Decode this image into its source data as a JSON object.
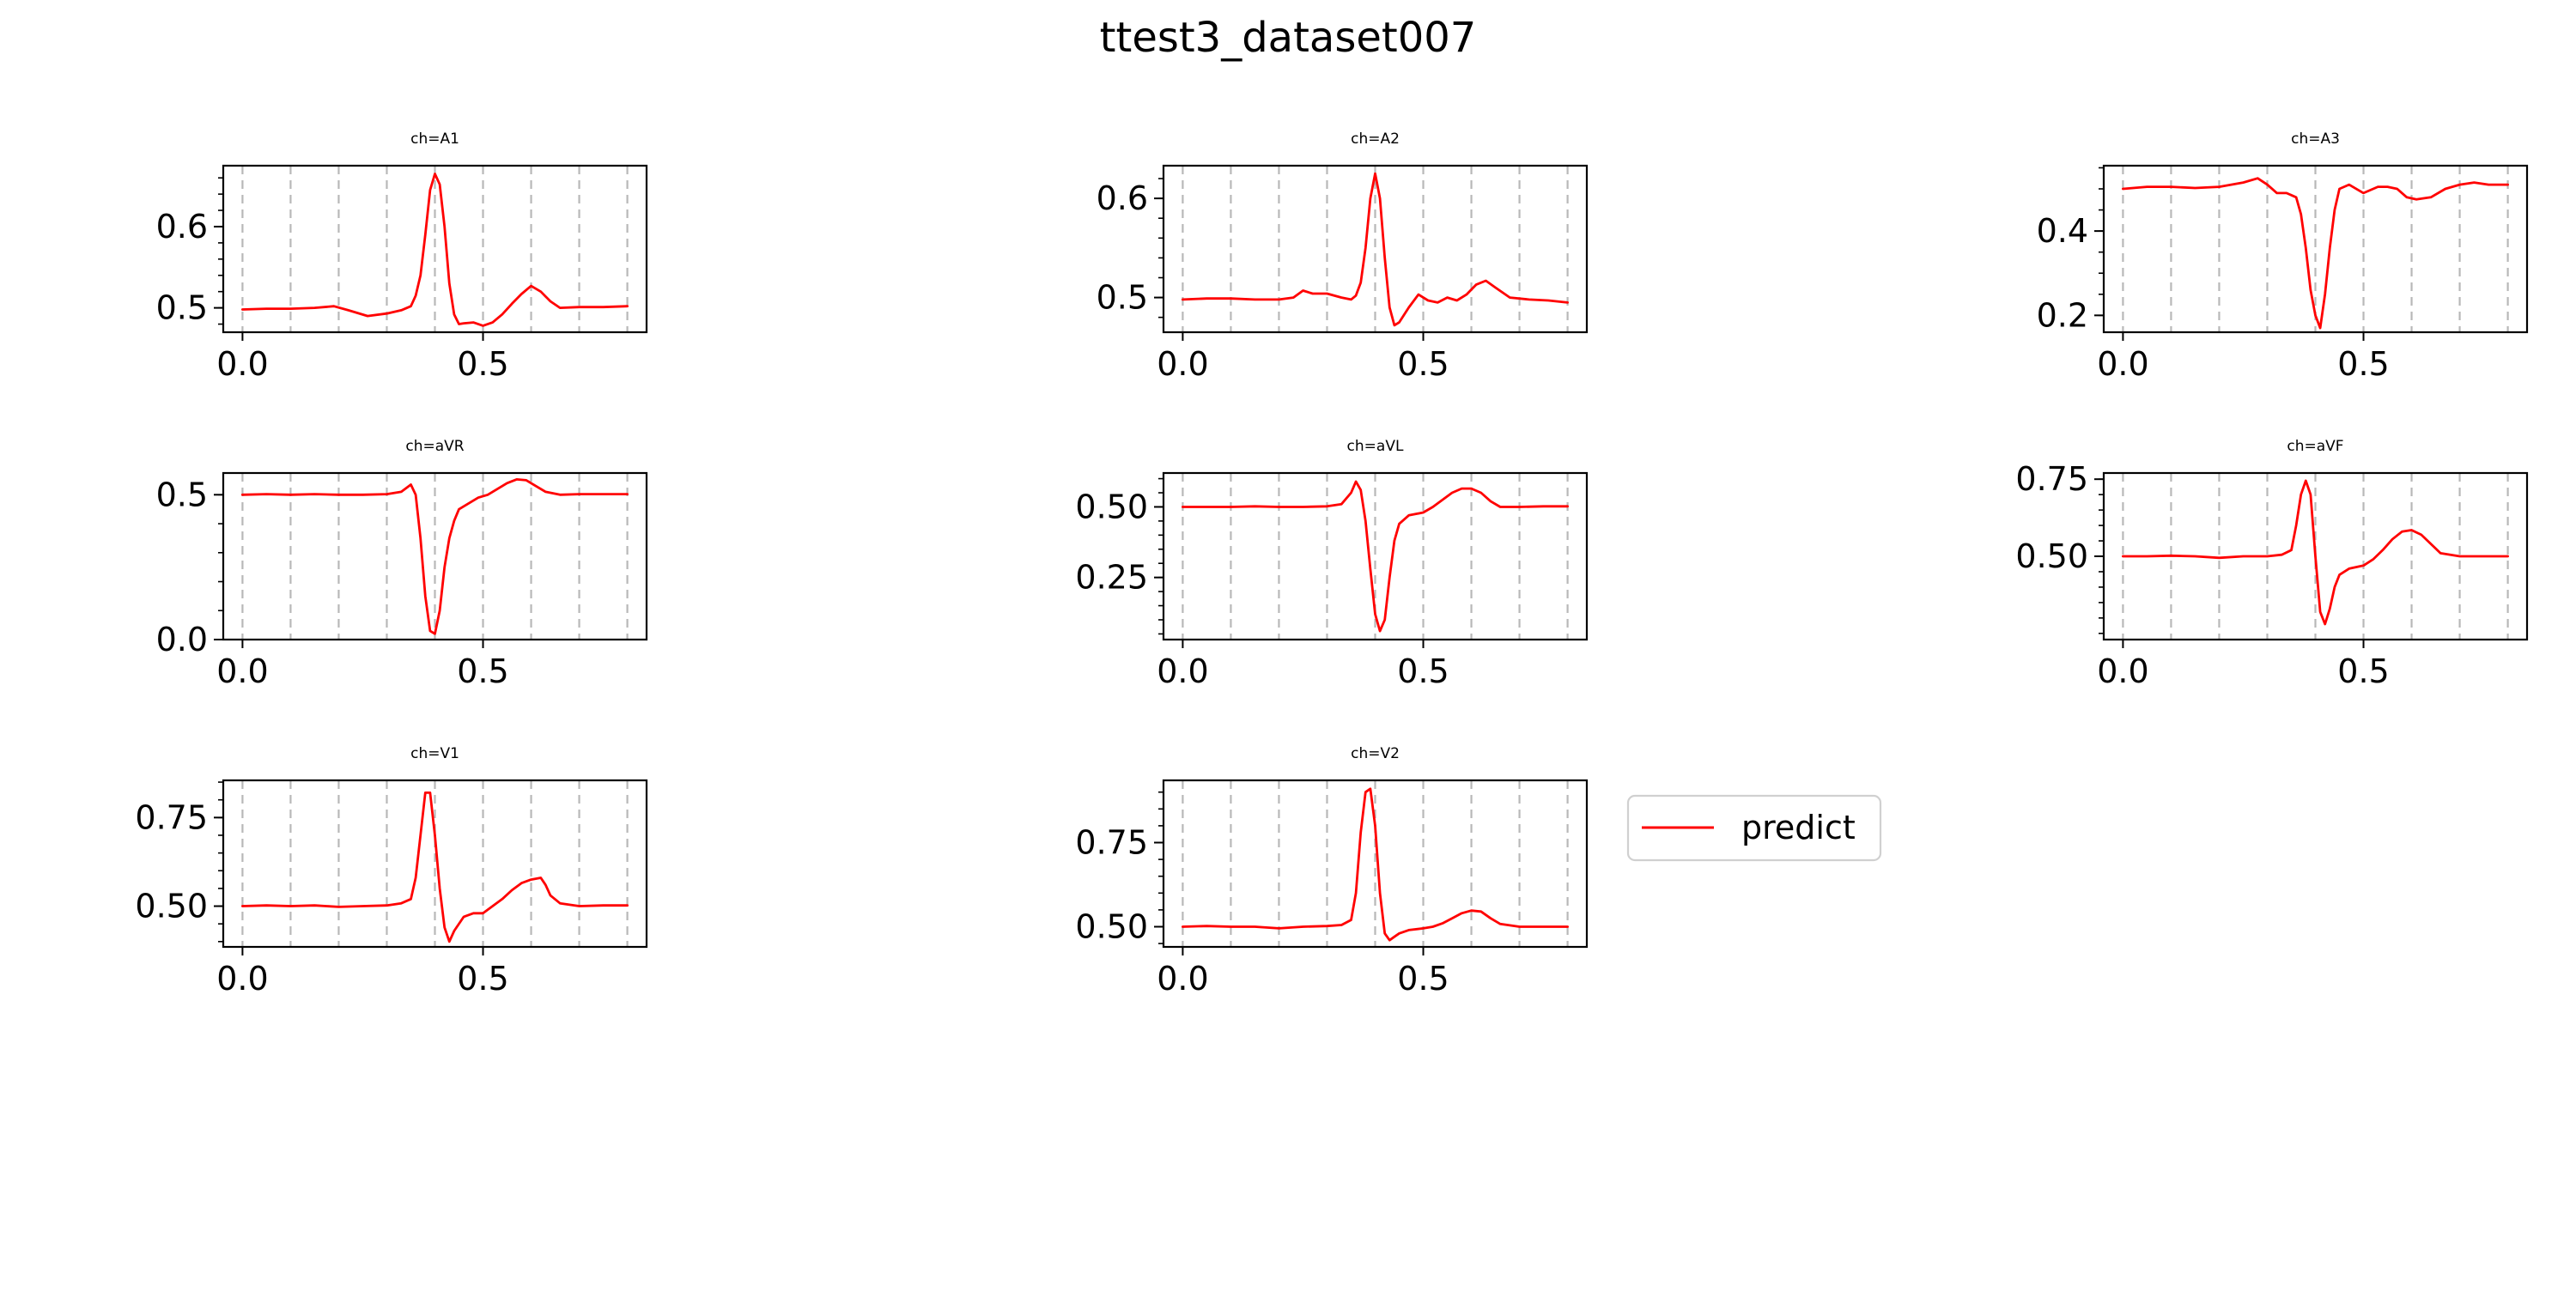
{
  "figure": {
    "title": "ttest3_dataset007",
    "legend": {
      "label": "predict",
      "color": "#ff0000",
      "placement": "right of ch=V2 panel"
    }
  },
  "chart_data": [
    {
      "type": "line",
      "title": "ch=A1",
      "xlim": [
        -0.04,
        0.84
      ],
      "ylim": [
        0.47,
        0.675
      ],
      "xticks": [
        0.0,
        0.5
      ],
      "xtick_labels": [
        "0.0",
        "0.5"
      ],
      "yticks": [
        0.5,
        0.6
      ],
      "ytick_labels": [
        "0.5",
        "0.6"
      ],
      "yminor_step": 0.02,
      "vlines": [
        0.0,
        0.1,
        0.2,
        0.3,
        0.4,
        0.5,
        0.6,
        0.7,
        0.8
      ],
      "grid": "x dashed",
      "color": "#ff0000",
      "series": [
        {
          "name": "predict",
          "x": [
            0.0,
            0.05,
            0.1,
            0.15,
            0.19,
            0.22,
            0.26,
            0.3,
            0.33,
            0.35,
            0.36,
            0.37,
            0.38,
            0.39,
            0.4,
            0.41,
            0.42,
            0.43,
            0.44,
            0.45,
            0.46,
            0.48,
            0.5,
            0.52,
            0.54,
            0.56,
            0.58,
            0.6,
            0.62,
            0.64,
            0.66,
            0.7,
            0.75,
            0.8
          ],
          "y": [
            0.498,
            0.499,
            0.499,
            0.5,
            0.502,
            0.497,
            0.49,
            0.493,
            0.497,
            0.502,
            0.515,
            0.54,
            0.59,
            0.645,
            0.665,
            0.652,
            0.6,
            0.53,
            0.492,
            0.48,
            0.481,
            0.482,
            0.478,
            0.482,
            0.492,
            0.505,
            0.517,
            0.527,
            0.52,
            0.508,
            0.5,
            0.501,
            0.501,
            0.502
          ]
        }
      ]
    },
    {
      "type": "line",
      "title": "ch=A2",
      "xlim": [
        -0.04,
        0.84
      ],
      "ylim": [
        0.465,
        0.633
      ],
      "xticks": [
        0.0,
        0.5
      ],
      "xtick_labels": [
        "0.0",
        "0.5"
      ],
      "yticks": [
        0.5,
        0.6
      ],
      "ytick_labels": [
        "0.5",
        "0.6"
      ],
      "yminor_step": 0.02,
      "vlines": [
        0.0,
        0.1,
        0.2,
        0.3,
        0.4,
        0.5,
        0.6,
        0.7,
        0.8
      ],
      "grid": "x dashed",
      "color": "#ff0000",
      "series": [
        {
          "name": "predict",
          "x": [
            0.0,
            0.05,
            0.1,
            0.15,
            0.2,
            0.23,
            0.25,
            0.27,
            0.3,
            0.33,
            0.35,
            0.36,
            0.37,
            0.38,
            0.39,
            0.4,
            0.41,
            0.42,
            0.43,
            0.44,
            0.45,
            0.47,
            0.49,
            0.51,
            0.53,
            0.55,
            0.57,
            0.59,
            0.61,
            0.63,
            0.65,
            0.68,
            0.72,
            0.76,
            0.8
          ],
          "y": [
            0.498,
            0.499,
            0.499,
            0.498,
            0.498,
            0.5,
            0.507,
            0.504,
            0.504,
            0.5,
            0.498,
            0.502,
            0.515,
            0.55,
            0.6,
            0.625,
            0.6,
            0.54,
            0.49,
            0.472,
            0.475,
            0.49,
            0.503,
            0.497,
            0.495,
            0.5,
            0.497,
            0.503,
            0.513,
            0.517,
            0.51,
            0.5,
            0.498,
            0.497,
            0.495
          ]
        }
      ]
    },
    {
      "type": "line",
      "title": "ch=A3",
      "xlim": [
        -0.04,
        0.84
      ],
      "ylim": [
        0.16,
        0.555
      ],
      "xticks": [
        0.0,
        0.5
      ],
      "xtick_labels": [
        "0.0",
        "0.5"
      ],
      "yticks": [
        0.2,
        0.4
      ],
      "ytick_labels": [
        "0.2",
        "0.4"
      ],
      "yminor_step": 0.05,
      "vlines": [
        0.0,
        0.1,
        0.2,
        0.3,
        0.4,
        0.5,
        0.6,
        0.7,
        0.8
      ],
      "grid": "x dashed",
      "color": "#ff0000",
      "series": [
        {
          "name": "predict",
          "x": [
            0.0,
            0.05,
            0.1,
            0.15,
            0.2,
            0.25,
            0.28,
            0.3,
            0.32,
            0.34,
            0.36,
            0.37,
            0.38,
            0.39,
            0.4,
            0.41,
            0.42,
            0.43,
            0.44,
            0.45,
            0.47,
            0.5,
            0.53,
            0.55,
            0.57,
            0.59,
            0.61,
            0.64,
            0.67,
            0.7,
            0.73,
            0.76,
            0.8
          ],
          "y": [
            0.5,
            0.505,
            0.505,
            0.502,
            0.505,
            0.515,
            0.525,
            0.51,
            0.49,
            0.49,
            0.48,
            0.44,
            0.36,
            0.26,
            0.2,
            0.17,
            0.25,
            0.36,
            0.45,
            0.5,
            0.51,
            0.49,
            0.505,
            0.505,
            0.5,
            0.48,
            0.475,
            0.48,
            0.5,
            0.51,
            0.515,
            0.51,
            0.51
          ]
        }
      ]
    },
    {
      "type": "line",
      "title": "ch=aVR",
      "xlim": [
        -0.04,
        0.84
      ],
      "ylim": [
        0.0,
        0.575
      ],
      "xticks": [
        0.0,
        0.5
      ],
      "xtick_labels": [
        "0.0",
        "0.5"
      ],
      "yticks": [
        0.0,
        0.5
      ],
      "ytick_labels": [
        "0.0",
        "0.5"
      ],
      "yminor_step": 0.1,
      "vlines": [
        0.0,
        0.1,
        0.2,
        0.3,
        0.4,
        0.5,
        0.6,
        0.7,
        0.8
      ],
      "grid": "x dashed",
      "color": "#ff0000",
      "series": [
        {
          "name": "predict",
          "x": [
            0.0,
            0.05,
            0.1,
            0.15,
            0.2,
            0.25,
            0.3,
            0.33,
            0.35,
            0.36,
            0.37,
            0.38,
            0.39,
            0.4,
            0.41,
            0.42,
            0.43,
            0.44,
            0.45,
            0.47,
            0.49,
            0.51,
            0.53,
            0.55,
            0.57,
            0.59,
            0.61,
            0.63,
            0.66,
            0.7,
            0.75,
            0.8
          ],
          "y": [
            0.5,
            0.502,
            0.5,
            0.502,
            0.5,
            0.5,
            0.502,
            0.51,
            0.535,
            0.5,
            0.35,
            0.15,
            0.03,
            0.02,
            0.1,
            0.25,
            0.35,
            0.41,
            0.45,
            0.47,
            0.49,
            0.5,
            0.52,
            0.54,
            0.553,
            0.55,
            0.53,
            0.51,
            0.5,
            0.502,
            0.502,
            0.502
          ]
        }
      ]
    },
    {
      "type": "line",
      "title": "ch=aVL",
      "xlim": [
        -0.04,
        0.84
      ],
      "ylim": [
        0.03,
        0.62
      ],
      "xticks": [
        0.0,
        0.5
      ],
      "xtick_labels": [
        "0.0",
        "0.5"
      ],
      "yticks": [
        0.25,
        0.5
      ],
      "ytick_labels": [
        "0.25",
        "0.50"
      ],
      "yminor_step": 0.05,
      "vlines": [
        0.0,
        0.1,
        0.2,
        0.3,
        0.4,
        0.5,
        0.6,
        0.7,
        0.8
      ],
      "grid": "x dashed",
      "color": "#ff0000",
      "series": [
        {
          "name": "predict",
          "x": [
            0.0,
            0.05,
            0.1,
            0.15,
            0.2,
            0.25,
            0.3,
            0.33,
            0.35,
            0.36,
            0.37,
            0.38,
            0.39,
            0.4,
            0.41,
            0.42,
            0.43,
            0.44,
            0.45,
            0.47,
            0.5,
            0.52,
            0.54,
            0.56,
            0.58,
            0.6,
            0.62,
            0.64,
            0.66,
            0.7,
            0.75,
            0.8
          ],
          "y": [
            0.5,
            0.5,
            0.5,
            0.502,
            0.5,
            0.5,
            0.502,
            0.51,
            0.55,
            0.59,
            0.56,
            0.45,
            0.28,
            0.12,
            0.06,
            0.1,
            0.25,
            0.38,
            0.44,
            0.47,
            0.48,
            0.5,
            0.525,
            0.55,
            0.565,
            0.565,
            0.55,
            0.52,
            0.5,
            0.5,
            0.502,
            0.502
          ]
        }
      ]
    },
    {
      "type": "line",
      "title": "ch=aVF",
      "xlim": [
        -0.04,
        0.84
      ],
      "ylim": [
        0.23,
        0.77
      ],
      "xticks": [
        0.0,
        0.5
      ],
      "xtick_labels": [
        "0.0",
        "0.5"
      ],
      "yticks": [
        0.5,
        0.75
      ],
      "ytick_labels": [
        "0.50",
        "0.75"
      ],
      "yminor_step": 0.05,
      "vlines": [
        0.0,
        0.1,
        0.2,
        0.3,
        0.4,
        0.5,
        0.6,
        0.7,
        0.8
      ],
      "grid": "x dashed",
      "color": "#ff0000",
      "series": [
        {
          "name": "predict",
          "x": [
            0.0,
            0.05,
            0.1,
            0.15,
            0.2,
            0.25,
            0.3,
            0.33,
            0.35,
            0.36,
            0.37,
            0.38,
            0.39,
            0.4,
            0.41,
            0.42,
            0.43,
            0.44,
            0.45,
            0.47,
            0.5,
            0.52,
            0.54,
            0.56,
            0.58,
            0.6,
            0.62,
            0.64,
            0.66,
            0.7,
            0.75,
            0.8
          ],
          "y": [
            0.5,
            0.5,
            0.502,
            0.5,
            0.495,
            0.5,
            0.5,
            0.505,
            0.52,
            0.6,
            0.7,
            0.745,
            0.7,
            0.5,
            0.32,
            0.28,
            0.33,
            0.4,
            0.44,
            0.46,
            0.47,
            0.49,
            0.52,
            0.555,
            0.58,
            0.585,
            0.57,
            0.54,
            0.51,
            0.5,
            0.5,
            0.5
          ]
        }
      ]
    },
    {
      "type": "line",
      "title": "ch=V1",
      "xlim": [
        -0.04,
        0.84
      ],
      "ylim": [
        0.385,
        0.855
      ],
      "xticks": [
        0.0,
        0.5
      ],
      "xtick_labels": [
        "0.0",
        "0.5"
      ],
      "yticks": [
        0.5,
        0.75
      ],
      "ytick_labels": [
        "0.50",
        "0.75"
      ],
      "yminor_step": 0.05,
      "vlines": [
        0.0,
        0.1,
        0.2,
        0.3,
        0.4,
        0.5,
        0.6,
        0.7,
        0.8
      ],
      "grid": "x dashed",
      "color": "#ff0000",
      "series": [
        {
          "name": "predict",
          "x": [
            0.0,
            0.05,
            0.1,
            0.15,
            0.2,
            0.25,
            0.3,
            0.33,
            0.35,
            0.36,
            0.37,
            0.38,
            0.39,
            0.4,
            0.41,
            0.42,
            0.43,
            0.44,
            0.46,
            0.48,
            0.5,
            0.52,
            0.54,
            0.56,
            0.58,
            0.6,
            0.62,
            0.63,
            0.64,
            0.66,
            0.7,
            0.75,
            0.8
          ],
          "y": [
            0.5,
            0.502,
            0.5,
            0.502,
            0.498,
            0.5,
            0.502,
            0.508,
            0.52,
            0.58,
            0.7,
            0.82,
            0.82,
            0.7,
            0.55,
            0.44,
            0.4,
            0.43,
            0.47,
            0.48,
            0.48,
            0.5,
            0.52,
            0.545,
            0.565,
            0.575,
            0.58,
            0.56,
            0.53,
            0.508,
            0.5,
            0.502,
            0.502
          ]
        }
      ]
    },
    {
      "type": "line",
      "title": "ch=V2",
      "xlim": [
        -0.04,
        0.84
      ],
      "ylim": [
        0.44,
        0.935
      ],
      "xticks": [
        0.0,
        0.5
      ],
      "xtick_labels": [
        "0.0",
        "0.5"
      ],
      "yticks": [
        0.5,
        0.75
      ],
      "ytick_labels": [
        "0.50",
        "0.75"
      ],
      "yminor_step": 0.05,
      "vlines": [
        0.0,
        0.1,
        0.2,
        0.3,
        0.4,
        0.5,
        0.6,
        0.7,
        0.8
      ],
      "grid": "x dashed",
      "color": "#ff0000",
      "series": [
        {
          "name": "predict",
          "x": [
            0.0,
            0.05,
            0.1,
            0.15,
            0.2,
            0.25,
            0.3,
            0.33,
            0.35,
            0.36,
            0.37,
            0.38,
            0.39,
            0.4,
            0.41,
            0.42,
            0.43,
            0.44,
            0.45,
            0.47,
            0.5,
            0.52,
            0.54,
            0.56,
            0.58,
            0.6,
            0.62,
            0.64,
            0.66,
            0.7,
            0.75,
            0.8
          ],
          "y": [
            0.5,
            0.502,
            0.5,
            0.5,
            0.495,
            0.5,
            0.502,
            0.505,
            0.52,
            0.6,
            0.78,
            0.9,
            0.91,
            0.8,
            0.6,
            0.48,
            0.46,
            0.47,
            0.48,
            0.49,
            0.495,
            0.5,
            0.51,
            0.525,
            0.54,
            0.548,
            0.545,
            0.525,
            0.508,
            0.5,
            0.5,
            0.5
          ]
        }
      ]
    }
  ]
}
